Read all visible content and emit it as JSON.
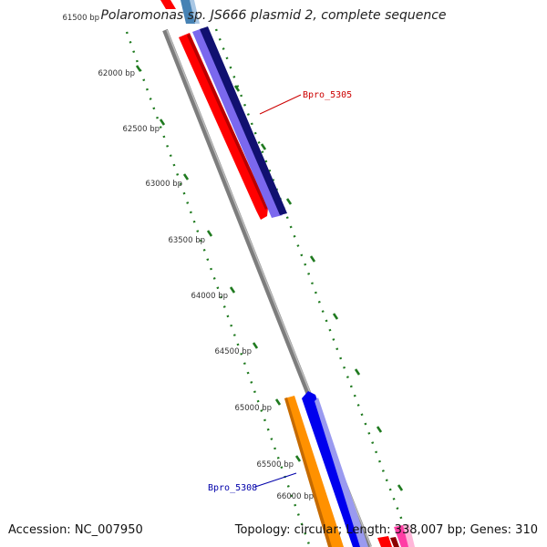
{
  "title": "Polaromonas sp. JS666 plasmid 2, complete sequence",
  "footer": {
    "accession": "Accession: NC_007950",
    "summary": "Topology: circular; Length: 338,007 bp; Genes: 310"
  },
  "ticks": [
    "61500 bp",
    "62000 bp",
    "62500 bp",
    "63000 bp",
    "63500 bp",
    "64000 bp",
    "64500 bp",
    "65000 bp",
    "65500 bp",
    "66000 bp"
  ],
  "gene_labels": [
    "Bpro_5305",
    "Bpro_5308"
  ],
  "colors": {
    "backbone": "#8c8c8c",
    "tick_dots": "#1f7a1f",
    "tick_label": "#333333",
    "label_5305": "#cc0000",
    "label_5308": "#0000aa",
    "red_gene": "#ff0000",
    "navy_gene": "#101070",
    "purple_gene": "#6a5acd",
    "orange_gene": "#ff8c00",
    "blue_gene": "#0000ee",
    "steel_gene": "#4682b4",
    "pink_gene": "#ff3ea5"
  }
}
